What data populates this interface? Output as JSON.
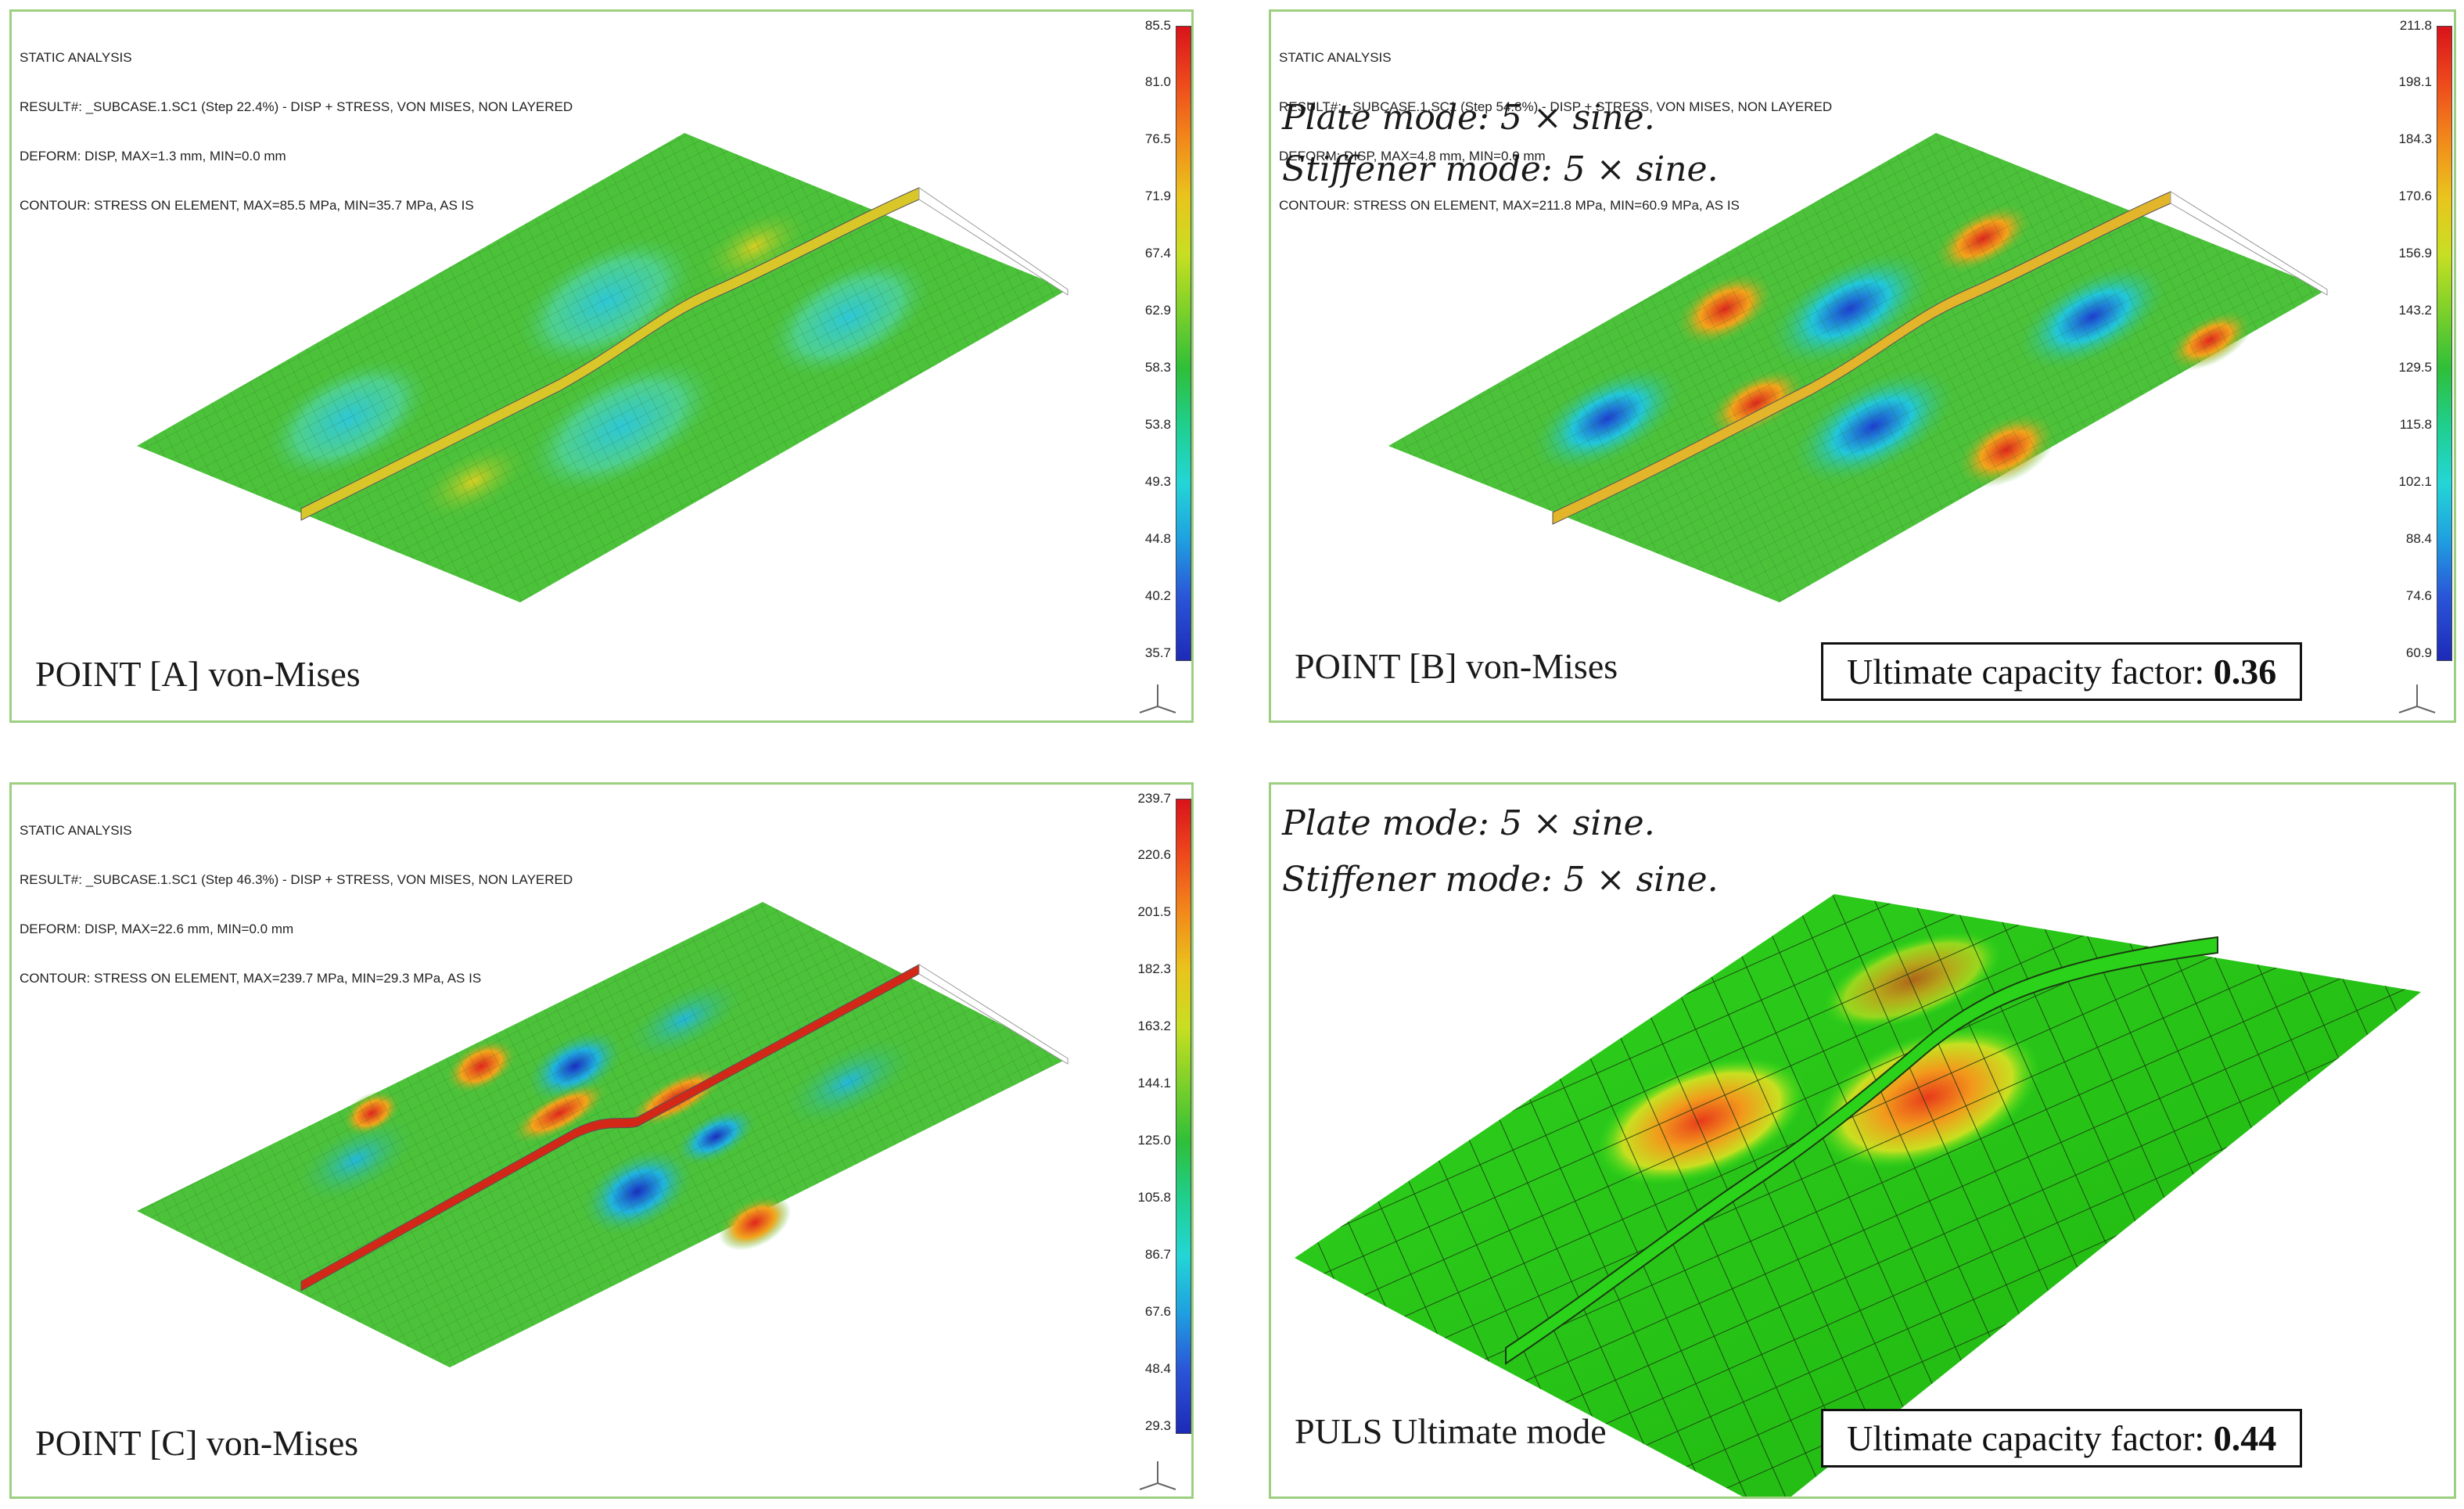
{
  "panels": {
    "a": {
      "header": [
        "STATIC ANALYSIS",
        "RESULT#: _SUBCASE.1.SC1 (Step 22.4%) - DISP + STRESS, VON MISES, NON LAYERED",
        "DEFORM: DISP, MAX=1.3 mm, MIN=0.0 mm",
        "CONTOUR: STRESS ON ELEMENT, MAX=85.5 MPa, MIN=35.7 MPa, AS IS"
      ],
      "ticks": [
        "85.5",
        "81.0",
        "76.5",
        "71.9",
        "67.4",
        "62.9",
        "58.3",
        "53.8",
        "49.3",
        "44.8",
        "40.2",
        "35.7"
      ],
      "label": "POINT [A] von-Mises"
    },
    "b": {
      "header": [
        "STATIC ANALYSIS",
        "RESULT#: _SUBCASE.1.SC1 (Step 54.8%) - DISP + STRESS, VON MISES, NON LAYERED",
        "DEFORM: DISP, MAX=4.8 mm, MIN=0.0 mm",
        "CONTOUR: STRESS ON ELEMENT, MAX=211.8 MPa, MIN=60.9 MPa, AS IS"
      ],
      "ticks": [
        "211.8",
        "198.1",
        "184.3",
        "170.6",
        "156.9",
        "143.2",
        "129.5",
        "115.8",
        "102.1",
        "88.4",
        "74.6",
        "60.9"
      ],
      "plate_mode": "Plate mode: 5 × sine.",
      "stiffener_mode": "Stiffener mode: 5 × sine.",
      "label": "POINT [B] von-Mises",
      "factor_label": "Ultimate capacity factor:",
      "factor_value": "0.36"
    },
    "c": {
      "header": [
        "STATIC ANALYSIS",
        "RESULT#: _SUBCASE.1.SC1 (Step 46.3%) - DISP + STRESS, VON MISES, NON LAYERED",
        "DEFORM: DISP, MAX=22.6 mm, MIN=0.0 mm",
        "CONTOUR: STRESS ON ELEMENT, MAX=239.7 MPa, MIN=29.3 MPa, AS IS"
      ],
      "ticks": [
        "239.7",
        "220.6",
        "201.5",
        "182.3",
        "163.2",
        "144.1",
        "125.0",
        "105.8",
        "86.7",
        "67.6",
        "48.4",
        "29.3"
      ],
      "label": "POINT [C] von-Mises"
    },
    "d": {
      "plate_mode": "Plate mode: 5 × sine.",
      "stiffener_mode": "Stiffener mode: 5 × sine.",
      "label": "PULS Ultimate mode",
      "factor_label": "Ultimate capacity factor:",
      "factor_value": "0.44"
    }
  },
  "colors": {
    "panel_border": "#9ccf7f",
    "plate_base": "#4cc23a",
    "high_stress": "#e0261d",
    "low_stress": "#1a3fd0",
    "puls_surface": "#39e21f"
  },
  "colorbar": [
    "#d9131b",
    "#ee4a1c",
    "#f28a1b",
    "#e9c51c",
    "#c7df22",
    "#7cd02a",
    "#2fbf39",
    "#1fcf8e",
    "#23d6d6",
    "#1fa0e0",
    "#2a55d8",
    "#1d2ab8"
  ]
}
